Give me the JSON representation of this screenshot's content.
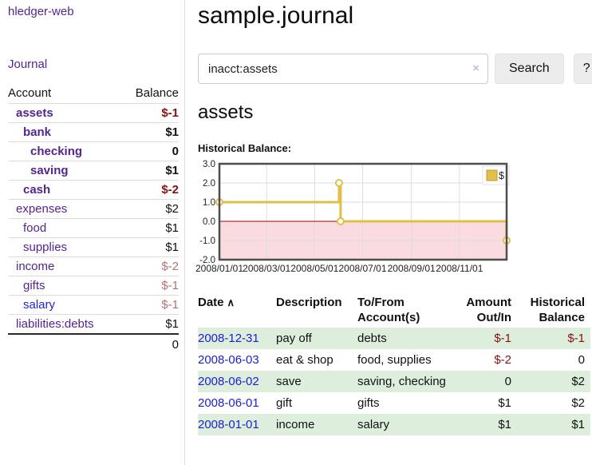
{
  "colors": {
    "link_purple": "#54258f",
    "link_blue": "#2222d5",
    "negative_strong": "#871111",
    "negative_muted": "#b47272",
    "row_stripe_green": "#ddeedd",
    "date_link_blue": "#1d1dd1",
    "chart_line_gold": "#e3be4b"
  },
  "sidebar": {
    "brand": "hledger-web",
    "nav_journal": "Journal",
    "header": {
      "account": "Account",
      "balance": "Balance"
    },
    "accounts": [
      {
        "name": "assets",
        "indent": 0,
        "bold": true,
        "balance": "$-1",
        "neg": "strong"
      },
      {
        "name": "bank",
        "indent": 1,
        "bold": true,
        "balance": "$1"
      },
      {
        "name": "checking",
        "indent": 2,
        "bold": true,
        "balance": "0"
      },
      {
        "name": "saving",
        "indent": 2,
        "bold": true,
        "balance": "$1"
      },
      {
        "name": "cash",
        "indent": 1,
        "bold": true,
        "balance": "$-2",
        "neg": "strong"
      },
      {
        "name": "expenses",
        "indent": 0,
        "bold": false,
        "balance": "$2"
      },
      {
        "name": "food",
        "indent": 1,
        "bold": false,
        "balance": "$1"
      },
      {
        "name": "supplies",
        "indent": 1,
        "bold": false,
        "balance": "$1"
      },
      {
        "name": "income",
        "indent": 0,
        "bold": false,
        "balance": "$-2",
        "neg": "muted"
      },
      {
        "name": "gifts",
        "indent": 1,
        "bold": false,
        "balance": "$-1",
        "neg": "muted"
      },
      {
        "name": "salary",
        "indent": 1,
        "bold": false,
        "balance": "$-1",
        "neg": "muted",
        "link_color": "blue"
      },
      {
        "name": "liabilities:debts",
        "indent": 0,
        "bold": false,
        "balance": "$1"
      }
    ],
    "total": "0"
  },
  "main": {
    "title": "sample.journal",
    "search": {
      "value": "inacct:assets",
      "clear": "×",
      "button": "Search",
      "help": "?"
    },
    "account_heading": "assets",
    "chart_heading": "Historical Balance:"
  },
  "chart_data": {
    "type": "line",
    "step": true,
    "title": "Historical Balance",
    "legend": [
      "$"
    ],
    "legend_position": "top-right",
    "x": [
      "2008-01-01",
      "2008-06-01",
      "2008-06-03",
      "2008-12-31"
    ],
    "series": [
      {
        "name": "$",
        "values": [
          1,
          2,
          0,
          -1
        ]
      }
    ],
    "x_domain": [
      "2008-01-01",
      "2008-12-31"
    ],
    "ylim": [
      -2,
      3
    ],
    "yticks": [
      "3.0",
      "2.0",
      "1.0",
      "0.0",
      "-1.0",
      "-2.0"
    ],
    "xticks": [
      "2008-01-01",
      "2008-03-01",
      "2008-05-01",
      "2008-07-01",
      "2008-09-01",
      "2008-11-01"
    ],
    "xtick_labels": [
      "2008/01/01",
      "2008/03/01",
      "2008/05/01",
      "2008/07/01",
      "2008/09/01",
      "2008/11/01"
    ],
    "grid": true,
    "colors": {
      "line": "#e3be4b",
      "marker_fill": "#ffffff",
      "negative_region": "#fadce0",
      "zero_line": "#a00000",
      "grid": "#dddddd",
      "border": "#4d4d4d",
      "tick_text": "#222222"
    }
  },
  "table": {
    "headers": {
      "date": "Date",
      "sort_icon": "∧",
      "description": "Description",
      "accounts": "To/From\nAccount(s)",
      "amount": "Amount\nOut/In",
      "balance": "Historical\nBalance"
    },
    "rows": [
      {
        "date": "2008-12-31",
        "description": "pay off",
        "accounts": "debts",
        "amount": "$-1",
        "balance": "$-1",
        "amount_neg": true,
        "balance_neg": true,
        "shaded": true
      },
      {
        "date": "2008-06-03",
        "description": "eat & shop",
        "accounts": "food, supplies",
        "amount": "$-2",
        "balance": "0",
        "amount_neg": true,
        "balance_neg": false,
        "shaded": false
      },
      {
        "date": "2008-06-02",
        "description": "save",
        "accounts": "saving, checking",
        "amount": "0",
        "balance": "$2",
        "amount_neg": false,
        "balance_neg": false,
        "shaded": true
      },
      {
        "date": "2008-06-01",
        "description": "gift",
        "accounts": "gifts",
        "amount": "$1",
        "balance": "$2",
        "amount_neg": false,
        "balance_neg": false,
        "shaded": false
      },
      {
        "date": "2008-01-01",
        "description": "income",
        "accounts": "salary",
        "amount": "$1",
        "balance": "$1",
        "amount_neg": false,
        "balance_neg": false,
        "shaded": true
      }
    ]
  }
}
